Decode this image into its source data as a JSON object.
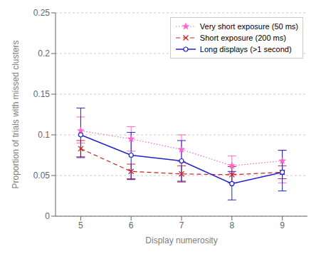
{
  "chart_data": {
    "type": "line",
    "xlabel": "Display numerosity",
    "ylabel": "Proportion of trials with missed clusters",
    "x": [
      5,
      6,
      7,
      8,
      9
    ],
    "series": [
      {
        "name": "Very short exposure (50 ms)",
        "color": "#ff66cc",
        "marker": "star",
        "line_style": "dotted",
        "values": [
          0.105,
          0.095,
          0.082,
          0.062,
          0.068
        ],
        "error_up": [
          0.017,
          0.015,
          0.018,
          0.012,
          0.013
        ],
        "error_down": [
          0.015,
          0.015,
          0.015,
          0.01,
          0.027
        ]
      },
      {
        "name": "Short exposure (200 ms)",
        "color": "#cc2222",
        "marker": "x",
        "line_style": "dashed",
        "values": [
          0.083,
          0.055,
          0.052,
          0.051,
          0.054
        ],
        "error_up": [
          0.01,
          0.009,
          0.01,
          0.01,
          0.008
        ],
        "error_down": [
          0.01,
          0.009,
          0.01,
          0.01,
          0.008
        ]
      },
      {
        "name": "Long displays (>1 second)",
        "color": "#2222cc",
        "marker": "circle",
        "line_style": "solid",
        "values": [
          0.1,
          0.075,
          0.068,
          0.04,
          0.054
        ],
        "error_up": [
          0.033,
          0.028,
          0.025,
          0.015,
          0.027
        ],
        "error_down": [
          0.028,
          0.03,
          0.025,
          0.02,
          0.023
        ]
      }
    ],
    "xlim": [
      4.5,
      9.5
    ],
    "ylim": [
      0,
      0.25
    ],
    "xticks": [
      5,
      6,
      7,
      8,
      9
    ],
    "yticks": [
      0,
      0.05,
      0.1,
      0.15,
      0.2,
      0.25
    ],
    "grid": true,
    "legend": "upper right"
  }
}
